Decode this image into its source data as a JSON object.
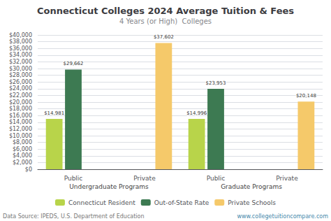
{
  "chart_data": {
    "type": "bar",
    "title": "Connecticut Colleges 2024 Average Tuition & Fees",
    "subtitle": "4 Years (or High)  Colleges",
    "categories": [
      "Public",
      "Private",
      "Public",
      "Private"
    ],
    "series": [
      {
        "name": "Connecticut Resident",
        "color": "#b8d44a",
        "values": [
          14981,
          null,
          14996,
          null
        ],
        "value_labels": [
          "$14,981",
          null,
          "$14,996",
          null
        ]
      },
      {
        "name": "Out-of-State Rate",
        "color": "#3d7a52",
        "values": [
          29662,
          null,
          23953,
          null
        ],
        "value_labels": [
          "$29,662",
          null,
          "$23,953",
          null
        ]
      },
      {
        "name": "Private Schools",
        "color": "#f5c96a",
        "values": [
          null,
          37602,
          null,
          20148
        ],
        "value_labels": [
          null,
          "$37,602",
          null,
          "$20,148"
        ]
      }
    ],
    "ylim": [
      0,
      40000
    ],
    "yticks": [
      {
        "value": 0,
        "label": "$0"
      },
      {
        "value": 2000,
        "label": "$2,000"
      },
      {
        "value": 4000,
        "label": "$4,000"
      },
      {
        "value": 6000,
        "label": "$6,000"
      },
      {
        "value": 8000,
        "label": "$8,000"
      },
      {
        "value": 10000,
        "label": "$10,000"
      },
      {
        "value": 12000,
        "label": "$12,000"
      },
      {
        "value": 14000,
        "label": "$14,000"
      },
      {
        "value": 16000,
        "label": "$16,000"
      },
      {
        "value": 18000,
        "label": "$18,000"
      },
      {
        "value": 20000,
        "label": "$20,000"
      },
      {
        "value": 22000,
        "label": "$22,000"
      },
      {
        "value": 24000,
        "label": "$24,000"
      },
      {
        "value": 26000,
        "label": "$26,000"
      },
      {
        "value": 28000,
        "label": "$28,000"
      },
      {
        "value": 30000,
        "label": "$30,000"
      },
      {
        "value": 32000,
        "label": "$32,000"
      },
      {
        "value": 34000,
        "label": "$34,000"
      },
      {
        "value": 36000,
        "label": "$36,000"
      },
      {
        "value": 38000,
        "label": "$38,000"
      },
      {
        "value": 40000,
        "label": "$40,000"
      }
    ],
    "annotations": [
      "Undergraduate Programs",
      "Graduate Programs"
    ],
    "footer": [
      "Data Source: IPEDS, U.S. Department of Education",
      "www.collegetuitioncompare.com"
    ],
    "grid": true,
    "legend": "bottom",
    "data_labels": true
  }
}
